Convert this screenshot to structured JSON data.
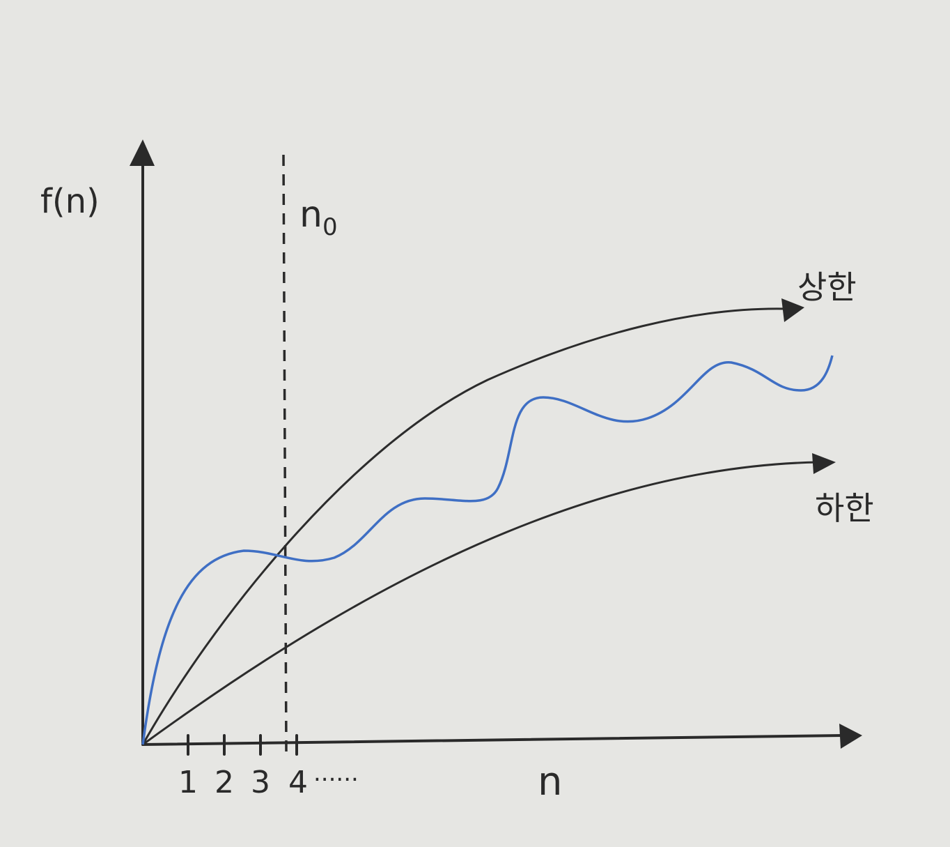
{
  "axes": {
    "y_label": "f(n)",
    "x_label": "n",
    "x_ticks": [
      "1",
      "2",
      "3",
      "4"
    ],
    "x_ellipsis": "......"
  },
  "threshold": {
    "label": "n",
    "subscript": "0"
  },
  "curves": {
    "upper": "상한",
    "lower": "하한"
  }
}
